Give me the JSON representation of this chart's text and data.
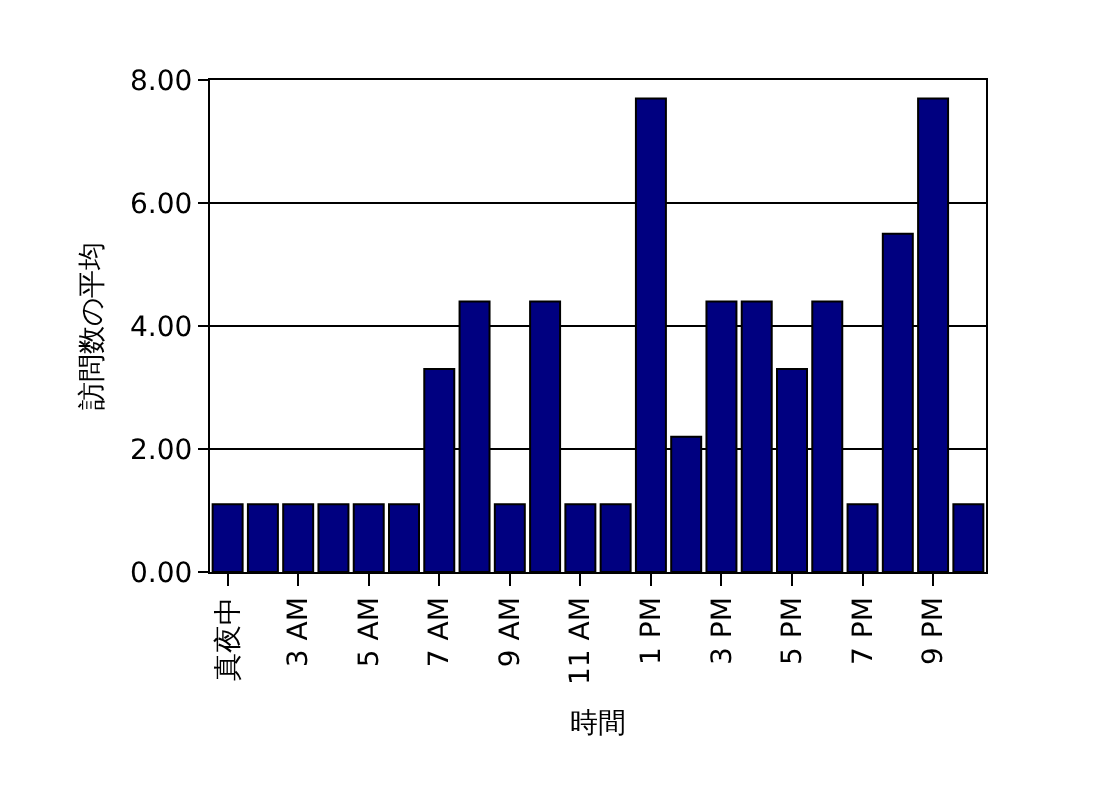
{
  "chart_data": {
    "type": "bar",
    "xlabel": "時間",
    "ylabel": "訪問数の平均",
    "categories": [
      "真夜中",
      null,
      "3 AM",
      null,
      "5 AM",
      null,
      "7 AM",
      null,
      "9 AM",
      null,
      "11 AM",
      null,
      "1 PM",
      null,
      "3 PM",
      null,
      "5 PM",
      null,
      "7 PM",
      null,
      "9 PM",
      null
    ],
    "values": [
      1.1,
      1.1,
      1.1,
      1.1,
      1.1,
      1.1,
      3.3,
      4.4,
      1.1,
      4.4,
      1.1,
      1.1,
      7.7,
      2.2,
      4.4,
      4.4,
      3.3,
      4.4,
      1.1,
      5.5,
      7.7,
      1.1
    ],
    "color": "#000080",
    "ylim": [
      0,
      8
    ],
    "yticks": [
      {
        "value": 0,
        "label": "0.00"
      },
      {
        "value": 2,
        "label": "2.00"
      },
      {
        "value": 4,
        "label": "4.00"
      },
      {
        "value": 6,
        "label": "6.00"
      },
      {
        "value": 8,
        "label": "8.00"
      }
    ],
    "grid": "y",
    "legend": false
  }
}
